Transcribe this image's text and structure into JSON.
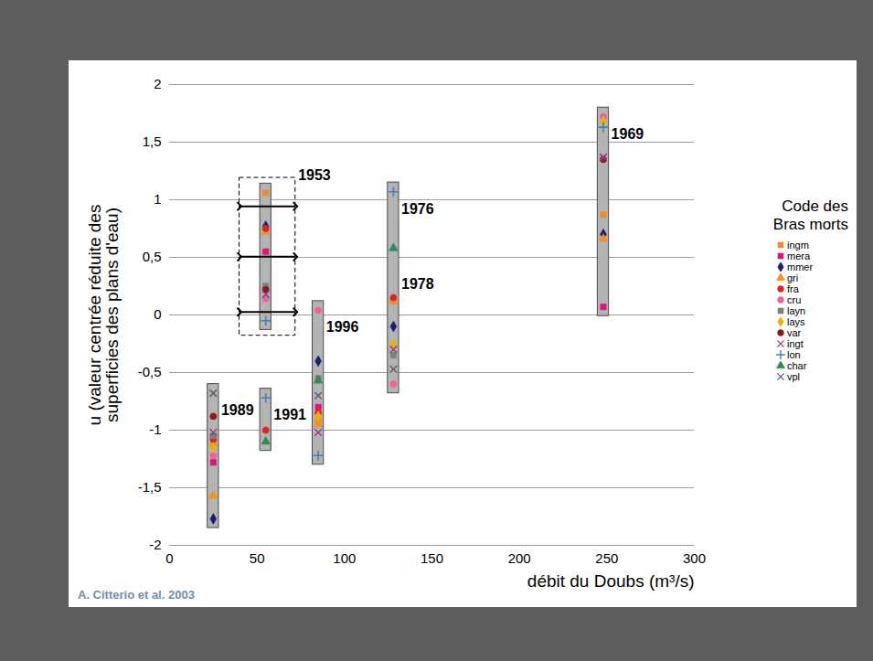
{
  "chart_data": {
    "type": "scatter",
    "x_label": "débit du Doubs (m³/s)",
    "y_label": "u (valeur centrée réduite des superficies des plans d'eau)",
    "caption": "A. Citterio et al. 2003",
    "legend_title": "Code des Bras morts",
    "legend": "right",
    "grid": "y",
    "xlim": [
      0,
      300
    ],
    "xticks": [
      0,
      50,
      100,
      150,
      200,
      250,
      300
    ],
    "ylim": [
      -2,
      2
    ],
    "yticks": [
      -2,
      {
        "value": -1.5,
        "label": "-1,5"
      },
      -1,
      {
        "value": -0.5,
        "label": "-0,5"
      },
      0,
      {
        "value": 0.5,
        "label": "0,5"
      },
      1,
      {
        "value": 1.5,
        "label": "1,5"
      },
      2
    ],
    "groups": [
      {
        "labels": [
          "1989"
        ],
        "x": 25
      },
      {
        "labels": [
          "1991"
        ],
        "x": 55
      },
      {
        "labels": [
          "1953"
        ],
        "x": 55,
        "x_range": [
          40,
          72
        ]
      },
      {
        "labels": [
          "1996"
        ],
        "x": 85
      },
      {
        "labels": [
          "1976",
          "1978"
        ],
        "x": 128
      },
      {
        "labels": [
          "1969"
        ],
        "x": 248
      }
    ],
    "series": [
      {
        "name": "ingm",
        "color": "#f28a30",
        "marker": "square",
        "values": [
          -1.12,
          null,
          1.06,
          -0.92,
          0.12,
          0.87
        ]
      },
      {
        "name": "mera",
        "color": "#e0147e",
        "marker": "square",
        "values": [
          -1.28,
          null,
          0.55,
          -0.8,
          null,
          0.07
        ]
      },
      {
        "name": "mmer",
        "color": "#1c1f6e",
        "marker": "diamond",
        "values": [
          -1.77,
          null,
          0.77,
          -0.4,
          -0.1,
          0.7
        ]
      },
      {
        "name": "gri",
        "color": "#f5901e",
        "marker": "triangle",
        "values": [
          -1.57,
          null,
          0.72,
          -0.95,
          0.13,
          0.66
        ]
      },
      {
        "name": "fra",
        "color": "#e02424",
        "marker": "circle",
        "values": [
          -1.08,
          -1.0,
          0.75,
          -0.85,
          0.15,
          null
        ]
      },
      {
        "name": "cru",
        "color": "#f0609a",
        "marker": "circle",
        "values": [
          -1.22,
          null,
          0.14,
          0.04,
          -0.6,
          1.72
        ]
      },
      {
        "name": "layn",
        "color": "#7f7f7f",
        "marker": "square",
        "values": [
          -1.05,
          null,
          0.25,
          -0.55,
          -0.35,
          null
        ]
      },
      {
        "name": "lays",
        "color": "#f0b000",
        "marker": "diamond",
        "values": [
          -1.15,
          null,
          null,
          -0.88,
          -0.26,
          1.68
        ]
      },
      {
        "name": "var",
        "color": "#8b1a1a",
        "marker": "circle",
        "values": [
          -0.88,
          null,
          0.22,
          null,
          null,
          1.35
        ]
      },
      {
        "name": "ingt",
        "color": "#9b3b8b",
        "marker": "x",
        "values": [
          -1.02,
          null,
          0.18,
          -1.02,
          -0.3,
          1.37
        ]
      },
      {
        "name": "lon",
        "color": "#4080c0",
        "marker": "plus",
        "values": [
          null,
          -0.72,
          -0.05,
          -1.22,
          1.07,
          1.63
        ]
      },
      {
        "name": "char",
        "color": "#2e8b57",
        "marker": "triangle",
        "values": [
          null,
          -1.1,
          null,
          -0.57,
          0.58,
          null
        ]
      },
      {
        "name": "vpl",
        "color": "#606070",
        "marker": "x",
        "values": [
          -0.68,
          null,
          null,
          -0.7,
          -0.47,
          null
        ]
      }
    ]
  }
}
